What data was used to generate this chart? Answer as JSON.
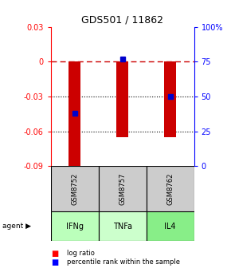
{
  "title": "GDS501 / 11862",
  "samples": [
    "GSM8752",
    "GSM8757",
    "GSM8762"
  ],
  "agents": [
    "IFNg",
    "TNFa",
    "IL4"
  ],
  "log_ratios": [
    -0.09,
    -0.065,
    -0.065
  ],
  "percentile_ranks": [
    0.38,
    0.77,
    0.5
  ],
  "ylim_left": [
    -0.09,
    0.03
  ],
  "ylim_right": [
    0.0,
    1.0
  ],
  "yticks_left": [
    0.03,
    0.0,
    -0.03,
    -0.06,
    -0.09
  ],
  "yticks_left_labels": [
    "0.03",
    "0",
    "-0.03",
    "-0.06",
    "-0.09"
  ],
  "yticks_right_vals": [
    1.0,
    0.75,
    0.5,
    0.25,
    0.0
  ],
  "yticks_right_labels": [
    "100%",
    "75",
    "50",
    "25",
    "0"
  ],
  "bar_color": "#cc0000",
  "marker_color": "#0000cc",
  "zero_line_color": "#cc0000",
  "grid_color": "#000000",
  "sample_bg": "#cccccc",
  "agent_colors": [
    "#bbffbb",
    "#ccffcc",
    "#88ee88"
  ],
  "legend_red": "log ratio",
  "legend_blue": "percentile rank within the sample",
  "bar_width": 0.25
}
